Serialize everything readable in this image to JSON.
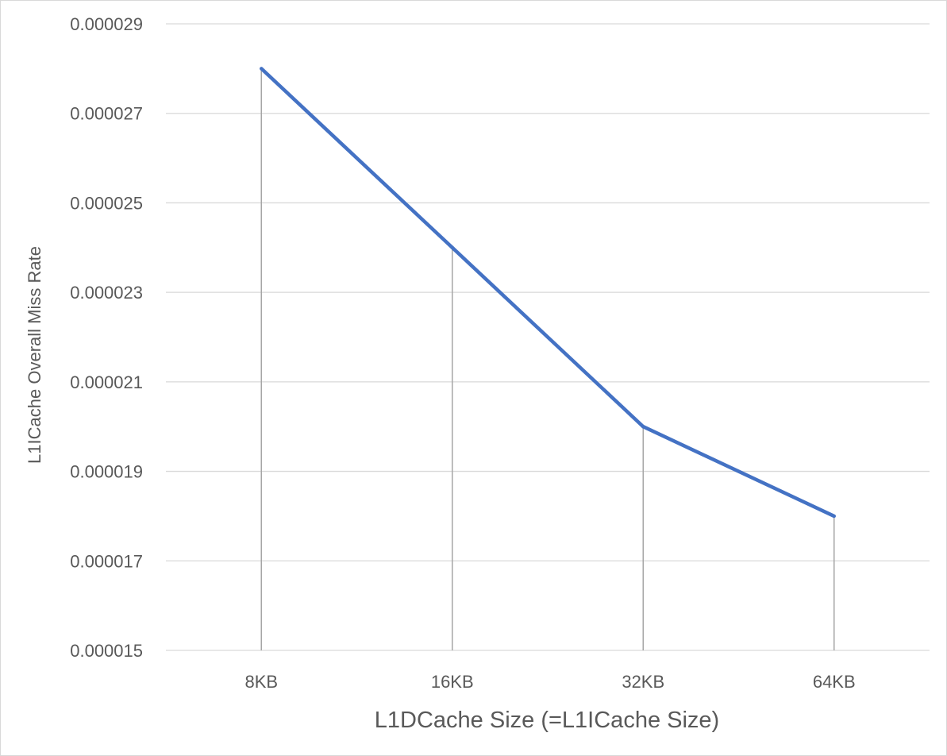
{
  "chart_data": {
    "type": "line",
    "title": "",
    "xlabel": "L1DCache Size (=L1ICache Size)",
    "ylabel": "L1ICache Overall Miss Rate",
    "categories": [
      "8KB",
      "16KB",
      "32KB",
      "64KB"
    ],
    "series": [
      {
        "values": [
          2.8e-05,
          2.4e-05,
          2e-05,
          1.8e-05
        ],
        "color": "#4472c4"
      }
    ],
    "ylim": [
      1.5e-05,
      2.9e-05
    ],
    "yticks": [
      "0.000015",
      "0.000017",
      "0.000019",
      "0.000021",
      "0.000023",
      "0.000025",
      "0.000027",
      "0.000029"
    ],
    "ytick_values": [
      1.5e-05,
      1.7e-05,
      1.9e-05,
      2.1e-05,
      2.3e-05,
      2.5e-05,
      2.7e-05,
      2.9e-05
    ],
    "grid": true,
    "drop_lines": true,
    "legend": "none"
  }
}
